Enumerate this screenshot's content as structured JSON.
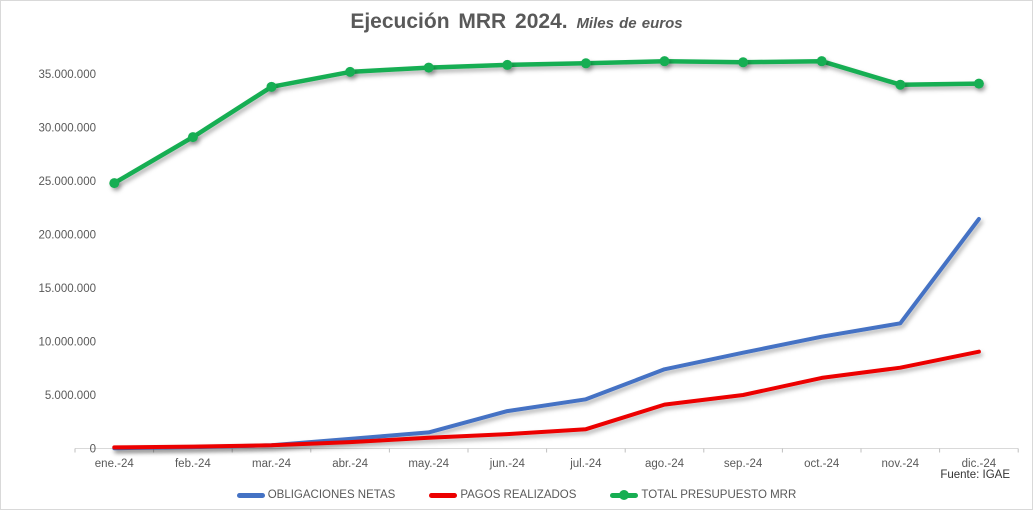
{
  "title": {
    "main": "Ejecución MRR 2024.",
    "subtitle": "Miles de euros"
  },
  "source": "Fuente: IGAE",
  "colors": {
    "accent_blue": "#4472C4",
    "accent_red": "#EC0000",
    "accent_green": "#17AE52",
    "axis_line": "#D9D9D9",
    "axis_text": "#595959",
    "title_text": "#595959"
  },
  "chart_data": {
    "type": "line",
    "title": "Ejecución MRR 2024. Miles de euros",
    "unit": "Miles de euros",
    "xlabel": "",
    "ylabel": "",
    "grid": false,
    "legend_position": "bottom",
    "categories": [
      "ene.-24",
      "feb.-24",
      "mar.-24",
      "abr.-24",
      "may.-24",
      "jun.-24",
      "jul.-24",
      "ago.-24",
      "sep.-24",
      "oct.-24",
      "nov.-24",
      "dic.-24"
    ],
    "ylim": [
      0,
      37400000
    ],
    "y_ticks": [
      0,
      5000000,
      10000000,
      15000000,
      20000000,
      25000000,
      30000000,
      35000000
    ],
    "y_tick_labels": [
      "0",
      "5.000.000",
      "10.000.000",
      "15.000.000",
      "20.000.000",
      "25.000.000",
      "30.000.000",
      "35.000.000"
    ],
    "series": [
      {
        "name": "OBLIGACIONES NETAS",
        "color": "#4472C4",
        "marker": false,
        "values": [
          30000,
          130000,
          300000,
          900000,
          1500000,
          3500000,
          4600000,
          7400000,
          8950000,
          10450000,
          11700000,
          21450000
        ]
      },
      {
        "name": "PAGOS REALIZADOS",
        "color": "#EC0000",
        "marker": false,
        "values": [
          100000,
          180000,
          300000,
          600000,
          1000000,
          1350000,
          1800000,
          4100000,
          5000000,
          6600000,
          7550000,
          9050000
        ]
      },
      {
        "name": "TOTAL PRESUPUESTO MRR",
        "color": "#17AE52",
        "marker": true,
        "values": [
          24800000,
          29100000,
          33800000,
          35200000,
          35600000,
          35850000,
          36000000,
          36200000,
          36100000,
          36200000,
          34000000,
          34100000
        ]
      }
    ]
  }
}
